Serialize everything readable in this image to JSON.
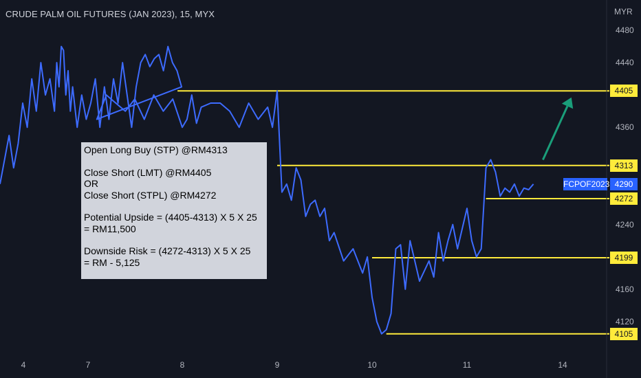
{
  "header": {
    "title": "CRUDE PALM OIL FUTURES (JAN 2023), 15, MYX",
    "currency": "MYR"
  },
  "colors": {
    "background": "#131722",
    "price_line": "#3d6bff",
    "level_line": "#ffeb3b",
    "arrow": "#1a9e7a",
    "last_price_tag": "#2962ff"
  },
  "last_price": {
    "symbol": "FCPOF2023",
    "value": "4290"
  },
  "annotation": {
    "lines": [
      "Open Long Buy (STP) @RM4313",
      "",
      "Close Short (LMT) @RM4405",
      "OR",
      "Close Short (STPL) @RM4272",
      "",
      "Potential Upside = (4405-4313) X 5 X 25",
      "= RM11,500",
      "",
      "Downside Risk = (4272-4313) X 5 X 25",
      "= RM - 5,125"
    ]
  },
  "chart_data": {
    "type": "line",
    "title": "CRUDE PALM OIL FUTURES (JAN 2023), 15, MYX",
    "xlabel": "",
    "ylabel": "",
    "ylim": [
      4100,
      4490
    ],
    "y_ticks": [
      4120,
      4160,
      4200,
      4240,
      4280,
      4320,
      4360,
      4400,
      4440,
      4480
    ],
    "x_ticks": [
      "4",
      "7",
      "8",
      "9",
      "10",
      "11",
      "14"
    ],
    "grid": false,
    "levels": [
      {
        "label": "4405",
        "value": 4405,
        "x_start": 7.95
      },
      {
        "label": "4313",
        "value": 4313,
        "x_start": 9.0
      },
      {
        "label": "4272",
        "value": 4272,
        "x_start": 11.2
      },
      {
        "label": "4199",
        "value": 4199,
        "x_start": 10.0
      },
      {
        "label": "4105",
        "value": 4105,
        "x_start": 10.15
      }
    ],
    "arrow": {
      "from": [
        11.8,
        4320
      ],
      "to": [
        12.1,
        4397
      ]
    },
    "series": [
      {
        "x": [
          3.0,
          3.1,
          3.2,
          3.3,
          3.4,
          3.5,
          3.6,
          3.7,
          3.8,
          3.9,
          4.0,
          4.1,
          4.2,
          4.25,
          4.3,
          4.35,
          4.4,
          4.45,
          4.5,
          4.55,
          4.6,
          4.7,
          4.8,
          4.9,
          5.0,
          5.1,
          5.2,
          5.3,
          5.4,
          5.5,
          5.6,
          5.7,
          5.8,
          5.9,
          6.0,
          6.1,
          6.2,
          6.3,
          6.4,
          6.5,
          6.6,
          6.7,
          6.8,
          6.9,
          7.0,
          7.1,
          7.2,
          7.3,
          7.4,
          7.5,
          7.6,
          7.7,
          7.8,
          7.9,
          8.0,
          8.05,
          8.1,
          8.15,
          8.2,
          8.3,
          8.4,
          8.5,
          8.6,
          8.7,
          8.8,
          8.9,
          8.95,
          9.0,
          9.05,
          9.1,
          9.15,
          9.2,
          9.25,
          9.3,
          9.35,
          9.4,
          9.45,
          9.5,
          9.55,
          9.6,
          9.7,
          9.8,
          9.9,
          9.95,
          10.0,
          10.05,
          10.1,
          10.15,
          10.2,
          10.25,
          10.3,
          10.35,
          10.4,
          10.5,
          10.6,
          10.65,
          10.7,
          10.75,
          10.8,
          10.85,
          10.9,
          10.95,
          11.0,
          11.05,
          11.1,
          11.15,
          11.2,
          11.25,
          11.3,
          11.35,
          11.4,
          11.45,
          11.5,
          11.55,
          11.6,
          11.65,
          11.7
        ],
        "y": [
          4290,
          4320,
          4350,
          4310,
          4340,
          4390,
          4360,
          4420,
          4380,
          4440,
          4400,
          4420,
          4380,
          4440,
          4410,
          4460,
          4455,
          4400,
          4430,
          4380,
          4410,
          4360,
          4400,
          4370,
          4390,
          4420,
          4360,
          4410,
          4370,
          4420,
          4390,
          4440,
          4400,
          4360,
          4410,
          4440,
          4450,
          4435,
          4445,
          4450,
          4430,
          4460,
          4440,
          4430,
          4410,
          4370,
          4400,
          4390,
          4380,
          4395,
          4370,
          4400,
          4380,
          4395,
          4360,
          4370,
          4400,
          4365,
          4385,
          4390,
          4390,
          4380,
          4360,
          4390,
          4370,
          4385,
          4360,
          4405,
          4280,
          4290,
          4270,
          4310,
          4295,
          4250,
          4265,
          4270,
          4250,
          4260,
          4220,
          4230,
          4195,
          4210,
          4180,
          4200,
          4150,
          4120,
          4105,
          4110,
          4130,
          4210,
          4215,
          4160,
          4220,
          4170,
          4195,
          4175,
          4230,
          4195,
          4220,
          4240,
          4210,
          4235,
          4260,
          4220,
          4200,
          4210,
          4310,
          4320,
          4305,
          4275,
          4285,
          4280,
          4290,
          4275,
          4285,
          4283,
          4290
        ]
      }
    ]
  }
}
